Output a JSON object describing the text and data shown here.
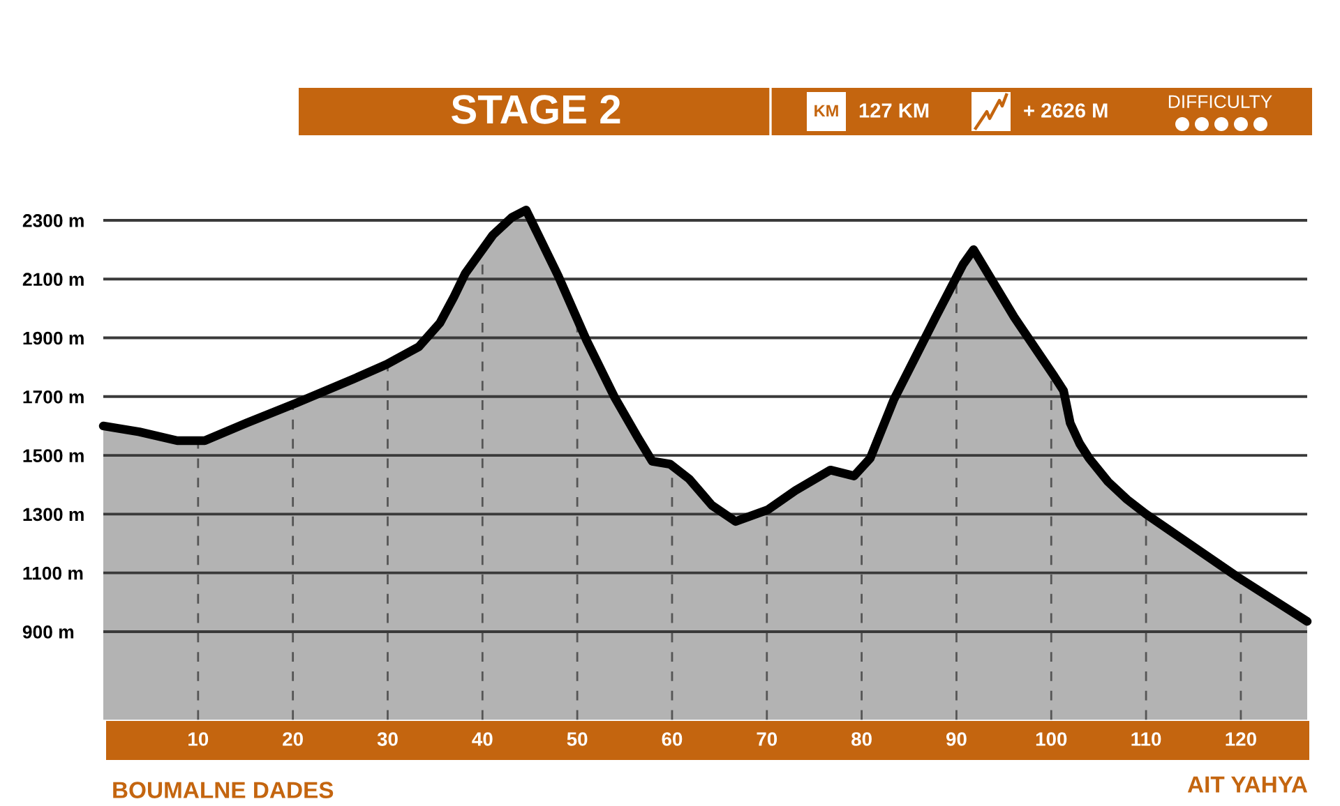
{
  "chart_data": {
    "type": "area",
    "title": "STAGE 2",
    "annotations": [
      "KM",
      "127 KM",
      "+ 2626 M",
      "DIFFICULTY",
      "BOUMALNE DADES",
      "AIT YAHYA"
    ],
    "x": [
      0,
      3.8,
      7.8,
      10.7,
      15.1,
      20.5,
      26.4,
      29.9,
      33.3,
      35.5,
      37,
      38.2,
      41.1,
      43.1,
      44.6,
      48,
      51,
      53.9,
      56.4,
      57.9,
      59.8,
      61.8,
      64.2,
      66.7,
      70.1,
      73,
      76.7,
      79.2,
      80.9,
      83.4,
      87.8,
      90.7,
      91.8,
      96.1,
      100.3,
      101.3,
      102,
      103,
      104,
      106,
      108,
      110,
      119.7,
      127
    ],
    "series": [
      {
        "color": "#b3b3b3",
        "values": [
          1600,
          1580,
          1550,
          1550,
          1610,
          1680,
          1760,
          1810,
          1870,
          1950,
          2040,
          2120,
          2250,
          2310,
          2335,
          2110,
          1890,
          1700,
          1560,
          1480,
          1470,
          1420,
          1330,
          1275,
          1315,
          1380,
          1450,
          1430,
          1490,
          1690,
          1970,
          2150,
          2200,
          1970,
          1770,
          1720,
          1610,
          1540,
          1490,
          1410,
          1350,
          1300,
          1085,
          935
        ]
      }
    ],
    "xlim": [
      0,
      127
    ],
    "xticks": [
      10,
      20,
      30,
      40,
      50,
      60,
      70,
      80,
      90,
      100,
      110,
      120
    ],
    "ylim": [
      600,
      2400
    ],
    "yticks": [
      {
        "value": 900,
        "label": "900 m"
      },
      {
        "value": 1100,
        "label": "1100 m"
      },
      {
        "value": 1300,
        "label": "1300 m"
      },
      {
        "value": 1500,
        "label": "1500 m"
      },
      {
        "value": 1700,
        "label": "1700 m"
      },
      {
        "value": 1900,
        "label": "1900 m"
      },
      {
        "value": 2100,
        "label": "2100 m"
      },
      {
        "value": 2300,
        "label": "2300 m"
      }
    ],
    "grid": true
  }
}
